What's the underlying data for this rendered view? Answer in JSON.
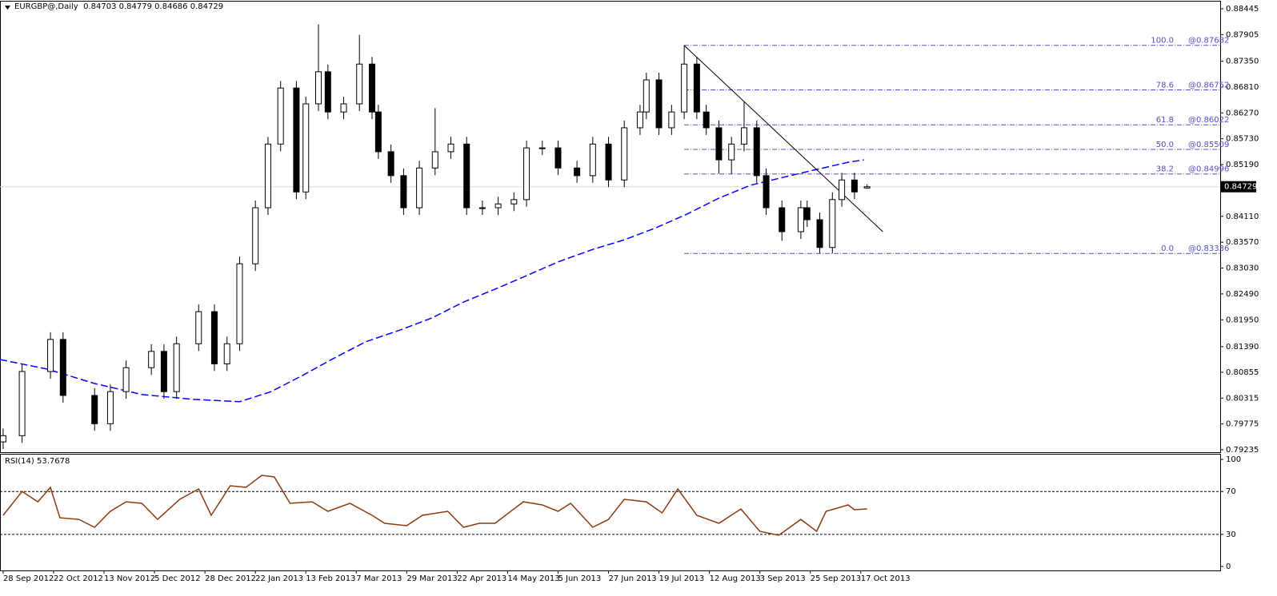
{
  "chart_data": [
    {
      "type": "candlestick",
      "symbol": "EURGBP@,Daily",
      "x": [
        0,
        6,
        15,
        19,
        29,
        34,
        39,
        47,
        51,
        55,
        62,
        67,
        71,
        75,
        80,
        84,
        88,
        93,
        96,
        100,
        103,
        108,
        113,
        117,
        119,
        123,
        127,
        132,
        137,
        142,
        147,
        152,
        157,
        162,
        166,
        171,
        176,
        182,
        187,
        192,
        197,
        202,
        204,
        208,
        212,
        216,
        220,
        223,
        227,
        231,
        235,
        239,
        242,
        247,
        253,
        255,
        259,
        263,
        266,
        270,
        274
      ],
      "open": [
        0.794,
        0.7953,
        0.8087,
        0.8154,
        0.8037,
        0.7978,
        0.8045,
        0.8095,
        0.8129,
        0.8045,
        0.8145,
        0.8212,
        0.8103,
        0.8145,
        0.8312,
        0.8429,
        0.8562,
        0.8679,
        0.8462,
        0.8646,
        0.8713,
        0.8629,
        0.8646,
        0.8729,
        0.8629,
        0.8546,
        0.8496,
        0.8429,
        0.8512,
        0.8546,
        0.8562,
        0.8429,
        0.8429,
        0.8437,
        0.8446,
        0.8554,
        0.8554,
        0.8512,
        0.8496,
        0.8562,
        0.8487,
        0.8596,
        0.8629,
        0.8696,
        0.8596,
        0.8629,
        0.8729,
        0.8629,
        0.8596,
        0.8529,
        0.8562,
        0.8596,
        0.8496,
        0.8429,
        0.8379,
        0.8429,
        0.8404,
        0.8346,
        0.8446,
        0.8487,
        0.84703
      ],
      "high": [
        0.7968,
        0.8102,
        0.8169,
        0.8169,
        0.8052,
        0.806,
        0.811,
        0.8144,
        0.8144,
        0.816,
        0.8227,
        0.8227,
        0.816,
        0.8327,
        0.8444,
        0.8577,
        0.8694,
        0.8694,
        0.8661,
        0.8812,
        0.8728,
        0.8661,
        0.879,
        0.8744,
        0.8644,
        0.8561,
        0.8511,
        0.8527,
        0.8637,
        0.8577,
        0.8577,
        0.8444,
        0.8452,
        0.8461,
        0.8569,
        0.8569,
        0.8569,
        0.8527,
        0.8577,
        0.8577,
        0.8611,
        0.8644,
        0.8711,
        0.8711,
        0.8644,
        0.8768,
        0.8744,
        0.8644,
        0.8611,
        0.8577,
        0.865,
        0.8611,
        0.8511,
        0.8444,
        0.8444,
        0.8444,
        0.8419,
        0.8461,
        0.8502,
        0.8502,
        0.84779
      ],
      "low": [
        0.7925,
        0.7938,
        0.8072,
        0.8022,
        0.7963,
        0.7963,
        0.803,
        0.808,
        0.803,
        0.803,
        0.813,
        0.8088,
        0.8088,
        0.813,
        0.8297,
        0.8414,
        0.8547,
        0.8447,
        0.8447,
        0.8631,
        0.8614,
        0.8614,
        0.8631,
        0.8614,
        0.8531,
        0.8481,
        0.8414,
        0.8414,
        0.8497,
        0.8531,
        0.8414,
        0.8414,
        0.8414,
        0.8422,
        0.8431,
        0.8539,
        0.8497,
        0.8481,
        0.8481,
        0.8472,
        0.8472,
        0.8581,
        0.8614,
        0.8581,
        0.8581,
        0.8614,
        0.8614,
        0.8581,
        0.85,
        0.85,
        0.8547,
        0.8481,
        0.8414,
        0.836,
        0.8364,
        0.8389,
        0.8334,
        0.8334,
        0.8431,
        0.8447,
        0.84686
      ],
      "close": [
        0.7953,
        0.8087,
        0.8154,
        0.8037,
        0.7978,
        0.8045,
        0.8095,
        0.8129,
        0.8045,
        0.8145,
        0.8212,
        0.8103,
        0.8145,
        0.8312,
        0.8429,
        0.8562,
        0.8679,
        0.8462,
        0.8646,
        0.8713,
        0.8629,
        0.8646,
        0.8729,
        0.8629,
        0.8546,
        0.8496,
        0.8429,
        0.8512,
        0.8546,
        0.8562,
        0.8429,
        0.8429,
        0.8437,
        0.8446,
        0.8554,
        0.8554,
        0.8512,
        0.8496,
        0.8562,
        0.8487,
        0.8596,
        0.8629,
        0.8696,
        0.8596,
        0.8629,
        0.8729,
        0.8629,
        0.8596,
        0.8529,
        0.8562,
        0.8596,
        0.8496,
        0.8429,
        0.8379,
        0.8429,
        0.8404,
        0.8346,
        0.8446,
        0.8487,
        0.8462,
        0.84729
      ],
      "xlim": [
        -1,
        386
      ],
      "ylim": [
        0.79185,
        0.88595
      ],
      "yticks": [
        0.88445,
        0.87905,
        {
          "value": 0.8735,
          "label": "0.87350"
        },
        {
          "value": 0.8681,
          "label": "0.86810"
        },
        {
          "value": 0.8627,
          "label": "0.86270"
        },
        {
          "value": 0.8573,
          "label": "0.85730"
        },
        {
          "value": 0.8519,
          "label": "0.85190"
        },
        {
          "value": 0.8411,
          "label": "0.84110"
        },
        {
          "value": 0.8357,
          "label": "0.83570"
        },
        {
          "value": 0.8303,
          "label": "0.83030"
        },
        {
          "value": 0.8249,
          "label": "0.82490"
        },
        {
          "value": 0.8195,
          "label": "0.81950"
        },
        {
          "value": 0.8139,
          "label": "0.81390"
        },
        0.80855,
        0.80315,
        0.79775,
        0.79235
      ],
      "xticks": [
        {
          "value": 0,
          "label": "28 Sep 2012"
        },
        {
          "value": 16,
          "label": "22 Oct 2012"
        },
        {
          "value": 32,
          "label": "13 Nov 2012"
        },
        {
          "value": 48,
          "label": "5 Dec 2012"
        },
        {
          "value": 64,
          "label": "28 Dec 2012"
        },
        {
          "value": 80,
          "label": "22 Jan 2013"
        },
        {
          "value": 96,
          "label": "13 Feb 2013"
        },
        {
          "value": 112,
          "label": "7 Mar 2013"
        },
        {
          "value": 128,
          "label": "29 Mar 2013"
        },
        {
          "value": 144,
          "label": "22 Apr 2013"
        },
        {
          "value": 160,
          "label": "14 May 2013"
        },
        {
          "value": 176,
          "label": "5 Jun 2013"
        },
        {
          "value": 192,
          "label": "27 Jun 2013"
        },
        {
          "value": 208,
          "label": "19 Jul 2013"
        },
        {
          "value": 224,
          "label": "12 Aug 2013"
        },
        {
          "value": 240,
          "label": "3 Sep 2013"
        },
        {
          "value": 256,
          "label": "25 Sep 2013"
        },
        {
          "value": 272,
          "label": "17 Oct 2013"
        }
      ],
      "up_color": "#ffffff",
      "down_color": "#000000",
      "moving_average": {
        "color": "#0000ff",
        "x": [
          -1,
          14,
          29,
          44,
          60,
          75,
          85,
          95,
          105,
          115,
          126,
          136,
          146,
          156,
          166,
          176,
          187,
          197,
          207,
          217,
          227,
          237,
          247,
          258,
          268,
          273
        ],
        "values": [
          0.8112,
          0.8092,
          0.8062,
          0.8039,
          0.8029,
          0.8024,
          0.8045,
          0.8079,
          0.8115,
          0.8149,
          0.8174,
          0.8199,
          0.8232,
          0.8259,
          0.8287,
          0.8316,
          0.8342,
          0.8362,
          0.8387,
          0.8416,
          0.8449,
          0.8476,
          0.8492,
          0.8509,
          0.8524,
          0.8529
        ]
      },
      "trendline": {
        "color": "#000000",
        "x": [
          216,
          279
        ],
        "values": [
          0.8768,
          0.8379
        ]
      },
      "fibonacci": {
        "color": "#5050c8",
        "x_start": 216,
        "levels": [
          100,
          78.6,
          61.8,
          50,
          38.2,
          0
        ],
        "level_labels": [
          "100.0",
          "78.6",
          "61.8",
          "50.0",
          "38.2",
          "0.0"
        ],
        "prices": [
          0.87682,
          0.86752,
          0.86022,
          0.85509,
          0.84996,
          0.83336
        ],
        "price_labels": [
          "@0.87682",
          "@0.86752",
          "@0.86022",
          "@0.85509",
          "@0.84996",
          "@0.83336"
        ]
      }
    },
    {
      "type": "line",
      "title": "RSI(14)",
      "color": "#8b3a0f",
      "x": [
        0,
        6,
        11,
        15,
        18,
        24,
        29,
        34,
        39,
        44,
        49,
        56,
        62,
        66,
        72,
        77,
        82,
        86,
        91,
        98,
        103,
        110,
        117,
        121,
        128,
        133,
        141,
        146,
        151,
        156,
        165,
        171,
        176,
        180,
        187,
        192,
        197,
        204,
        209,
        214,
        220,
        227,
        234,
        240,
        246,
        253,
        258,
        261,
        268,
        270,
        274
      ],
      "values": [
        47.8,
        70.1,
        60.4,
        73.9,
        45.5,
        44.0,
        36.6,
        51.5,
        60.4,
        59.0,
        44.0,
        62.7,
        72.4,
        47.8,
        75.4,
        73.9,
        85.1,
        83.6,
        59.0,
        60.4,
        51.5,
        59.0,
        47.8,
        40.3,
        38.1,
        47.8,
        51.5,
        36.6,
        40.3,
        40.3,
        60.4,
        57.5,
        51.5,
        59.0,
        36.6,
        44.0,
        62.7,
        60.4,
        50.0,
        72.4,
        47.8,
        40.3,
        53.7,
        32.8,
        29.1,
        44.0,
        32.8,
        51.5,
        57.5,
        53.0,
        53.7678
      ],
      "ylim": [
        -3.7,
        104.5
      ],
      "yticks": [
        0,
        30,
        70,
        100
      ],
      "levels": [
        30,
        70
      ]
    }
  ]
}
